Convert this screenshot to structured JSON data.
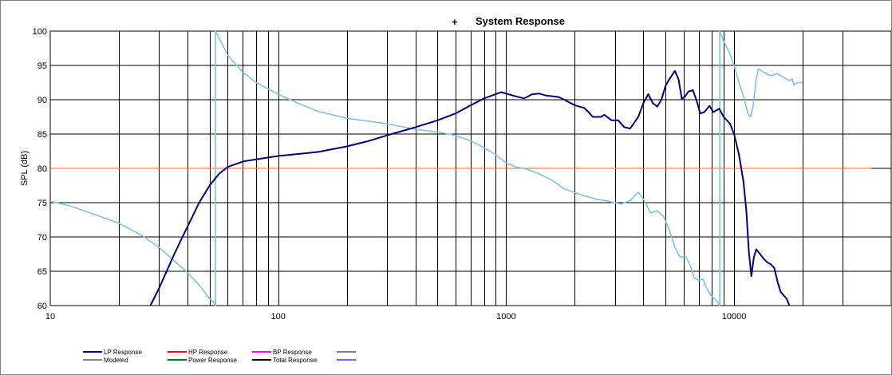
{
  "chart_data": {
    "type": "line",
    "title": "System Response",
    "title_marker": "+",
    "xlabel": "",
    "ylabel": "SPL (dB)",
    "x_scale": "log",
    "xlim": [
      10,
      40000
    ],
    "ylim": [
      60,
      100
    ],
    "x_tick_labels": [
      {
        "value": 10,
        "label": "10"
      },
      {
        "value": 100,
        "label": "100"
      },
      {
        "value": 1000,
        "label": "1000"
      },
      {
        "value": 10000,
        "label": "10000"
      }
    ],
    "y_ticks": [
      60,
      65,
      70,
      75,
      80,
      85,
      90,
      95,
      100
    ],
    "grid": true,
    "legend_position": "bottom",
    "legend": [
      {
        "label": "LP Response",
        "color": "#000080"
      },
      {
        "label": "HP Response",
        "color": "#ff0000"
      },
      {
        "label": "BP Response",
        "color": "#ff00ff"
      },
      {
        "label": "",
        "color": "#808080"
      },
      {
        "label": "Modeled",
        "color": "#808080"
      },
      {
        "label": "Power Response",
        "color": "#008000"
      },
      {
        "label": "Total Response",
        "color": "#000000"
      },
      {
        "label": "",
        "color": "#6666ff"
      }
    ],
    "series": [
      {
        "name": "LP Response",
        "color": "#000080",
        "points": [
          [
            27.5,
            60
          ],
          [
            30,
            62.5
          ],
          [
            35,
            67.5
          ],
          [
            40,
            71.5
          ],
          [
            45,
            75
          ],
          [
            50,
            77.5
          ],
          [
            55,
            79.2
          ],
          [
            60,
            80.2
          ],
          [
            70,
            81
          ],
          [
            80,
            81.3
          ],
          [
            100,
            81.8
          ],
          [
            150,
            82.4
          ],
          [
            200,
            83.2
          ],
          [
            250,
            84
          ],
          [
            300,
            84.8
          ],
          [
            400,
            86
          ],
          [
            500,
            87
          ],
          [
            600,
            88
          ],
          [
            700,
            89.2
          ],
          [
            800,
            90.2
          ],
          [
            900,
            90.8
          ],
          [
            950,
            91.1
          ],
          [
            1000,
            90.9
          ],
          [
            1100,
            90.5
          ],
          [
            1200,
            90.2
          ],
          [
            1300,
            90.8
          ],
          [
            1400,
            90.9
          ],
          [
            1500,
            90.6
          ],
          [
            1700,
            90.4
          ],
          [
            1800,
            90
          ],
          [
            2000,
            89.2
          ],
          [
            2200,
            88.8
          ],
          [
            2300,
            88.2
          ],
          [
            2400,
            87.5
          ],
          [
            2600,
            87.5
          ],
          [
            2700,
            87.8
          ],
          [
            2900,
            87
          ],
          [
            3100,
            87
          ],
          [
            3300,
            86
          ],
          [
            3500,
            85.8
          ],
          [
            3800,
            87.5
          ],
          [
            4000,
            89.5
          ],
          [
            4200,
            90.8
          ],
          [
            4400,
            89.5
          ],
          [
            4600,
            89
          ],
          [
            4800,
            90
          ],
          [
            5000,
            92
          ],
          [
            5200,
            93
          ],
          [
            5500,
            94.2
          ],
          [
            5700,
            93
          ],
          [
            5900,
            90.1
          ],
          [
            6100,
            90.5
          ],
          [
            6300,
            91.2
          ],
          [
            6600,
            91.4
          ],
          [
            6900,
            89.5
          ],
          [
            7100,
            88
          ],
          [
            7400,
            88.2
          ],
          [
            7800,
            89.1
          ],
          [
            8100,
            88.2
          ],
          [
            8600,
            88.7
          ],
          [
            9000,
            87.5
          ],
          [
            9600,
            86.5
          ],
          [
            10000,
            85
          ],
          [
            10500,
            82
          ],
          [
            11000,
            78
          ],
          [
            11300,
            74
          ],
          [
            11600,
            68
          ],
          [
            11900,
            64.3
          ],
          [
            12200,
            67
          ],
          [
            12500,
            68.2
          ],
          [
            13000,
            67.5
          ],
          [
            13500,
            66.8
          ],
          [
            14000,
            66.3
          ],
          [
            14500,
            66
          ],
          [
            15000,
            65.5
          ],
          [
            15500,
            63.5
          ],
          [
            16000,
            62
          ],
          [
            17000,
            61
          ],
          [
            17500,
            60
          ]
        ]
      },
      {
        "name": "Modeled",
        "color": "#7ec0ee",
        "points": [
          [
            10,
            75.2
          ],
          [
            12,
            74.6
          ],
          [
            15,
            73.5
          ],
          [
            20,
            72
          ],
          [
            25,
            70.3
          ],
          [
            30,
            68.5
          ],
          [
            35,
            66.5
          ],
          [
            40,
            64.8
          ],
          [
            45,
            63
          ],
          [
            50,
            61
          ],
          [
            52,
            60.5
          ],
          [
            53,
            60
          ],
          [
            53,
            100
          ],
          [
            54,
            99.5
          ],
          [
            57,
            98
          ],
          [
            60,
            96.5
          ],
          [
            70,
            94
          ],
          [
            80,
            92.5
          ],
          [
            100,
            90.8
          ],
          [
            120,
            89.6
          ],
          [
            150,
            88.3
          ],
          [
            200,
            87.3
          ],
          [
            300,
            86.5
          ],
          [
            400,
            85.7
          ],
          [
            500,
            85.3
          ],
          [
            600,
            84.8
          ],
          [
            700,
            84
          ],
          [
            800,
            83
          ],
          [
            900,
            82
          ],
          [
            1000,
            80.8
          ],
          [
            1100,
            80.2
          ],
          [
            1200,
            80
          ],
          [
            1400,
            79.2
          ],
          [
            1600,
            78.2
          ],
          [
            1800,
            77
          ],
          [
            2000,
            76.5
          ],
          [
            2200,
            76
          ],
          [
            2500,
            75.5
          ],
          [
            2800,
            75.2
          ],
          [
            3200,
            74.8
          ],
          [
            3500,
            75.3
          ],
          [
            3800,
            76.5
          ],
          [
            4000,
            75.5
          ],
          [
            4300,
            73.5
          ],
          [
            4600,
            73.8
          ],
          [
            4900,
            73
          ],
          [
            5200,
            71
          ],
          [
            5500,
            68.5
          ],
          [
            5800,
            67
          ],
          [
            6100,
            67.3
          ],
          [
            6400,
            66
          ],
          [
            6700,
            64
          ],
          [
            7000,
            63.7
          ],
          [
            7300,
            63.8
          ],
          [
            7600,
            62.5
          ],
          [
            7900,
            61.5
          ],
          [
            8200,
            61
          ],
          [
            8500,
            60.5
          ],
          [
            8650,
            60
          ],
          [
            8650,
            100
          ],
          [
            9000,
            98.5
          ],
          [
            9500,
            97
          ],
          [
            10000,
            95
          ],
          [
            10500,
            92.5
          ],
          [
            11000,
            90.5
          ],
          [
            11500,
            88
          ],
          [
            11800,
            87.5
          ],
          [
            12100,
            89
          ],
          [
            12500,
            93
          ],
          [
            12800,
            94.5
          ],
          [
            13500,
            94
          ],
          [
            14500,
            93.5
          ],
          [
            15500,
            93.8
          ],
          [
            16000,
            93.5
          ],
          [
            17000,
            93
          ],
          [
            17500,
            92.8
          ],
          [
            18000,
            93
          ],
          [
            18300,
            92.2
          ],
          [
            19000,
            92.5
          ],
          [
            20000,
            92.5
          ]
        ]
      },
      {
        "name": "HP Response",
        "color": "#ff6a00",
        "points": [
          [
            10,
            80
          ],
          [
            40000,
            80
          ]
        ]
      }
    ]
  }
}
